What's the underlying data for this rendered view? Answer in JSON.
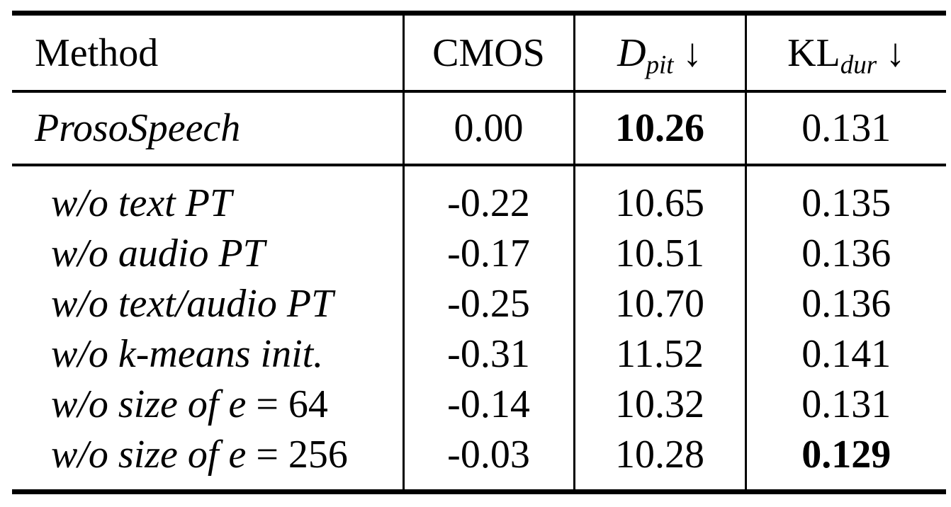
{
  "colors": {
    "background": "#ffffff",
    "text": "#000000",
    "rule": "#000000"
  },
  "table": {
    "header": {
      "method": "Method",
      "cmos": "CMOS",
      "dpit": {
        "base": "D",
        "sub": "pit",
        "arrow": "↓"
      },
      "kldur": {
        "base": "KL",
        "sub": "dur",
        "arrow": "↓"
      }
    },
    "baseline": {
      "method": "ProsoSpeech",
      "cmos": "0.00",
      "dpit": "10.26",
      "dpit_bold": true,
      "kldur": "0.131"
    },
    "rows": [
      {
        "method": "w/o text PT",
        "math": "",
        "cmos": "-0.22",
        "dpit": "10.65",
        "kldur": "0.135"
      },
      {
        "method": "w/o audio PT",
        "math": "",
        "cmos": "-0.17",
        "dpit": "10.51",
        "kldur": "0.136"
      },
      {
        "method": "w/o text/audio PT",
        "math": "",
        "cmos": "-0.25",
        "dpit": "10.70",
        "kldur": "0.136"
      },
      {
        "method": "w/o k-means init.",
        "math": "",
        "cmos": "-0.31",
        "dpit": "11.52",
        "kldur": "0.141"
      },
      {
        "method": "w/o size of e",
        "math": " = 64",
        "cmos": "-0.14",
        "dpit": "10.32",
        "kldur": "0.131"
      },
      {
        "method": "w/o size of e",
        "math": " = 256",
        "cmos": "-0.03",
        "dpit": "10.28",
        "kldur": "0.129",
        "kldur_bold": true
      }
    ]
  }
}
